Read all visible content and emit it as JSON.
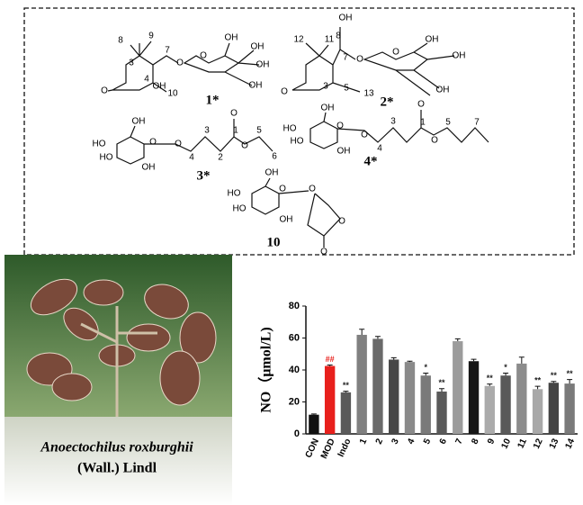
{
  "structures": [
    {
      "labels": [
        "8",
        "9",
        "7",
        "O",
        "3",
        "4",
        "OH",
        "O",
        "10",
        "O",
        "OH",
        "OH",
        "OH",
        "OH",
        "1*"
      ]
    },
    {
      "labels": [
        "12",
        "11",
        "OH",
        "8",
        "7",
        "O",
        "3",
        "5",
        "13",
        "O",
        "O",
        "OH",
        "OH",
        "OH",
        "2*"
      ]
    },
    {
      "labels": [
        "OH",
        "HO",
        "HO",
        "O",
        "O",
        "OH",
        "4",
        "3",
        "2",
        "1",
        "O",
        "O",
        "5",
        "6",
        "3*"
      ]
    },
    {
      "labels": [
        "OH",
        "HO",
        "HO",
        "O",
        "O",
        "OH",
        "4",
        "3",
        "1",
        "O",
        "O",
        "5",
        "7",
        "4*"
      ]
    },
    {
      "labels": [
        "OH",
        "HO",
        "HO",
        "O",
        "O",
        "OH",
        "O",
        "O",
        "10"
      ]
    }
  ],
  "photo": {
    "caption_species": "Anoectochilus roxburghii",
    "caption_authority": "(Wall.) Lindl"
  },
  "chart_data": {
    "type": "bar",
    "y_label": "NO（μmol/L)",
    "categories": [
      "CON",
      "MOD",
      "Indo",
      "1",
      "2",
      "3",
      "4",
      "5",
      "6",
      "7",
      "8",
      "9",
      "10",
      "11",
      "12",
      "13",
      "14"
    ],
    "values": [
      12,
      42.5,
      26,
      62,
      59.5,
      46.5,
      45,
      36.5,
      26.5,
      58,
      45.5,
      30,
      36.5,
      44,
      28,
      32,
      31.5
    ],
    "errors": [
      0.5,
      0.6,
      0.7,
      3.5,
      1.5,
      1.2,
      0.5,
      1.5,
      1.8,
      1.5,
      1.2,
      1.2,
      1.5,
      4,
      1.8,
      0.8,
      2.5
    ],
    "colors": [
      "#111111",
      "#e8201c",
      "#5a5a5a",
      "#808080",
      "#6a6a6a",
      "#474747",
      "#8a8a8a",
      "#7a7a7a",
      "#5a5a5a",
      "#9c9c9c",
      "#161616",
      "#ababab",
      "#595959",
      "#8c8c8c",
      "#a8a8a8",
      "#444444",
      "#7a7a7a"
    ],
    "annotations": [
      null,
      "##",
      "**",
      null,
      null,
      null,
      null,
      "*",
      "**",
      null,
      null,
      "**",
      "*",
      null,
      "**",
      "**",
      "**"
    ],
    "ylim": [
      0,
      80
    ],
    "yticks": [
      0,
      20,
      40,
      60,
      80
    ]
  }
}
